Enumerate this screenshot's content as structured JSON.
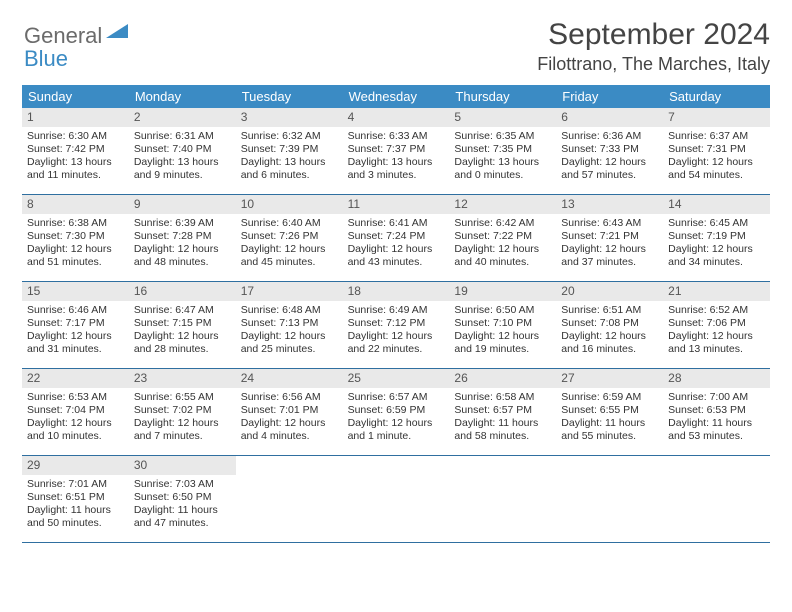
{
  "logo": {
    "line1": "General",
    "line2": "Blue"
  },
  "title": "September 2024",
  "location": "Filottrano, The Marches, Italy",
  "colors": {
    "header_bg": "#3b8bc4",
    "header_text": "#ffffff",
    "daynum_bg": "#e9e9e9",
    "week_border": "#2f6fa0",
    "body_text": "#333333"
  },
  "daynames": [
    "Sunday",
    "Monday",
    "Tuesday",
    "Wednesday",
    "Thursday",
    "Friday",
    "Saturday"
  ],
  "weeks": [
    [
      {
        "n": "1",
        "sr": "Sunrise: 6:30 AM",
        "ss": "Sunset: 7:42 PM",
        "d1": "Daylight: 13 hours",
        "d2": "and 11 minutes."
      },
      {
        "n": "2",
        "sr": "Sunrise: 6:31 AM",
        "ss": "Sunset: 7:40 PM",
        "d1": "Daylight: 13 hours",
        "d2": "and 9 minutes."
      },
      {
        "n": "3",
        "sr": "Sunrise: 6:32 AM",
        "ss": "Sunset: 7:39 PM",
        "d1": "Daylight: 13 hours",
        "d2": "and 6 minutes."
      },
      {
        "n": "4",
        "sr": "Sunrise: 6:33 AM",
        "ss": "Sunset: 7:37 PM",
        "d1": "Daylight: 13 hours",
        "d2": "and 3 minutes."
      },
      {
        "n": "5",
        "sr": "Sunrise: 6:35 AM",
        "ss": "Sunset: 7:35 PM",
        "d1": "Daylight: 13 hours",
        "d2": "and 0 minutes."
      },
      {
        "n": "6",
        "sr": "Sunrise: 6:36 AM",
        "ss": "Sunset: 7:33 PM",
        "d1": "Daylight: 12 hours",
        "d2": "and 57 minutes."
      },
      {
        "n": "7",
        "sr": "Sunrise: 6:37 AM",
        "ss": "Sunset: 7:31 PM",
        "d1": "Daylight: 12 hours",
        "d2": "and 54 minutes."
      }
    ],
    [
      {
        "n": "8",
        "sr": "Sunrise: 6:38 AM",
        "ss": "Sunset: 7:30 PM",
        "d1": "Daylight: 12 hours",
        "d2": "and 51 minutes."
      },
      {
        "n": "9",
        "sr": "Sunrise: 6:39 AM",
        "ss": "Sunset: 7:28 PM",
        "d1": "Daylight: 12 hours",
        "d2": "and 48 minutes."
      },
      {
        "n": "10",
        "sr": "Sunrise: 6:40 AM",
        "ss": "Sunset: 7:26 PM",
        "d1": "Daylight: 12 hours",
        "d2": "and 45 minutes."
      },
      {
        "n": "11",
        "sr": "Sunrise: 6:41 AM",
        "ss": "Sunset: 7:24 PM",
        "d1": "Daylight: 12 hours",
        "d2": "and 43 minutes."
      },
      {
        "n": "12",
        "sr": "Sunrise: 6:42 AM",
        "ss": "Sunset: 7:22 PM",
        "d1": "Daylight: 12 hours",
        "d2": "and 40 minutes."
      },
      {
        "n": "13",
        "sr": "Sunrise: 6:43 AM",
        "ss": "Sunset: 7:21 PM",
        "d1": "Daylight: 12 hours",
        "d2": "and 37 minutes."
      },
      {
        "n": "14",
        "sr": "Sunrise: 6:45 AM",
        "ss": "Sunset: 7:19 PM",
        "d1": "Daylight: 12 hours",
        "d2": "and 34 minutes."
      }
    ],
    [
      {
        "n": "15",
        "sr": "Sunrise: 6:46 AM",
        "ss": "Sunset: 7:17 PM",
        "d1": "Daylight: 12 hours",
        "d2": "and 31 minutes."
      },
      {
        "n": "16",
        "sr": "Sunrise: 6:47 AM",
        "ss": "Sunset: 7:15 PM",
        "d1": "Daylight: 12 hours",
        "d2": "and 28 minutes."
      },
      {
        "n": "17",
        "sr": "Sunrise: 6:48 AM",
        "ss": "Sunset: 7:13 PM",
        "d1": "Daylight: 12 hours",
        "d2": "and 25 minutes."
      },
      {
        "n": "18",
        "sr": "Sunrise: 6:49 AM",
        "ss": "Sunset: 7:12 PM",
        "d1": "Daylight: 12 hours",
        "d2": "and 22 minutes."
      },
      {
        "n": "19",
        "sr": "Sunrise: 6:50 AM",
        "ss": "Sunset: 7:10 PM",
        "d1": "Daylight: 12 hours",
        "d2": "and 19 minutes."
      },
      {
        "n": "20",
        "sr": "Sunrise: 6:51 AM",
        "ss": "Sunset: 7:08 PM",
        "d1": "Daylight: 12 hours",
        "d2": "and 16 minutes."
      },
      {
        "n": "21",
        "sr": "Sunrise: 6:52 AM",
        "ss": "Sunset: 7:06 PM",
        "d1": "Daylight: 12 hours",
        "d2": "and 13 minutes."
      }
    ],
    [
      {
        "n": "22",
        "sr": "Sunrise: 6:53 AM",
        "ss": "Sunset: 7:04 PM",
        "d1": "Daylight: 12 hours",
        "d2": "and 10 minutes."
      },
      {
        "n": "23",
        "sr": "Sunrise: 6:55 AM",
        "ss": "Sunset: 7:02 PM",
        "d1": "Daylight: 12 hours",
        "d2": "and 7 minutes."
      },
      {
        "n": "24",
        "sr": "Sunrise: 6:56 AM",
        "ss": "Sunset: 7:01 PM",
        "d1": "Daylight: 12 hours",
        "d2": "and 4 minutes."
      },
      {
        "n": "25",
        "sr": "Sunrise: 6:57 AM",
        "ss": "Sunset: 6:59 PM",
        "d1": "Daylight: 12 hours",
        "d2": "and 1 minute."
      },
      {
        "n": "26",
        "sr": "Sunrise: 6:58 AM",
        "ss": "Sunset: 6:57 PM",
        "d1": "Daylight: 11 hours",
        "d2": "and 58 minutes."
      },
      {
        "n": "27",
        "sr": "Sunrise: 6:59 AM",
        "ss": "Sunset: 6:55 PM",
        "d1": "Daylight: 11 hours",
        "d2": "and 55 minutes."
      },
      {
        "n": "28",
        "sr": "Sunrise: 7:00 AM",
        "ss": "Sunset: 6:53 PM",
        "d1": "Daylight: 11 hours",
        "d2": "and 53 minutes."
      }
    ],
    [
      {
        "n": "29",
        "sr": "Sunrise: 7:01 AM",
        "ss": "Sunset: 6:51 PM",
        "d1": "Daylight: 11 hours",
        "d2": "and 50 minutes."
      },
      {
        "n": "30",
        "sr": "Sunrise: 7:03 AM",
        "ss": "Sunset: 6:50 PM",
        "d1": "Daylight: 11 hours",
        "d2": "and 47 minutes."
      },
      null,
      null,
      null,
      null,
      null
    ]
  ]
}
